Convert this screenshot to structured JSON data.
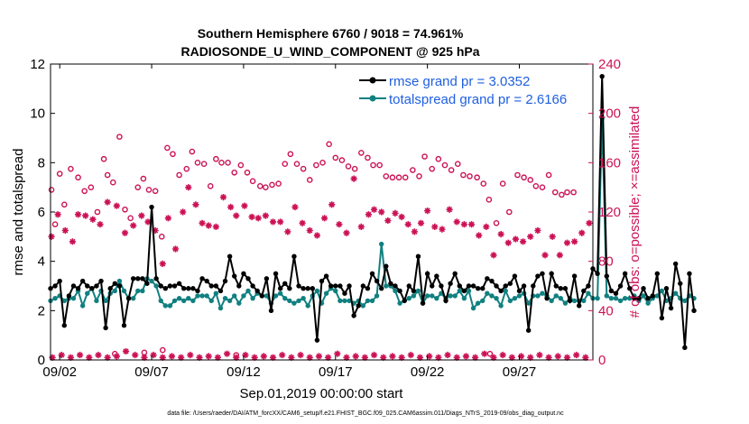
{
  "colors": {
    "rmse": "#000000",
    "spread": "#118080",
    "obs": "#cc1155",
    "axis": "#000000",
    "legend_text": "#1f5fe0"
  },
  "chart_data": {
    "type": "line",
    "title_line1": "Southern Hemisphere 6760 / 9018 = 74.961%",
    "title_line2": "RADIOSONDE_U_WIND_COMPONENT @ 925 hPa",
    "xlabel": "Sep.01,2019 00:00:00 start",
    "ylabel_left": "rmse and totalspread",
    "ylabel_right": "# of obs: o=possible; ×=assimilated",
    "xlim": [
      1.5,
      31
    ],
    "ylim_left": [
      0,
      12
    ],
    "ylim_right": [
      0,
      240
    ],
    "xticks": [
      {
        "value": 2,
        "label": "09/02"
      },
      {
        "value": 7,
        "label": "09/07"
      },
      {
        "value": 12,
        "label": "09/12"
      },
      {
        "value": 17,
        "label": "09/17"
      },
      {
        "value": 22,
        "label": "09/22"
      },
      {
        "value": 27,
        "label": "09/27"
      }
    ],
    "yticks_left": [
      0,
      2,
      4,
      6,
      8,
      10,
      12
    ],
    "yticks_right": [
      0,
      40,
      80,
      120,
      160,
      200,
      240
    ],
    "legend": [
      {
        "key": "rmse",
        "label": "rmse grand pr = 3.0352"
      },
      {
        "key": "spread",
        "label": "totalspread grand pr = 2.6166"
      }
    ],
    "footer": "data file: /Users/raeder/DAI/ATM_forcXX/CAM6_setup/f.e21.FHIST_BGC.f09_025.CAM6assim.011/Diags_NTrS_2019-09/obs_diag_output.nc",
    "x_start": 1.5,
    "x_step": 0.25,
    "rmse": [
      2.9,
      3.0,
      3.2,
      1.4,
      2.6,
      3.0,
      2.9,
      3.2,
      3.0,
      2.9,
      3.0,
      3.2,
      1.3,
      2.9,
      3.1,
      3.0,
      1.4,
      2.5,
      3.3,
      3.3,
      3.3,
      3.1,
      6.2,
      3.3,
      3.0,
      2.9,
      3.0,
      3.0,
      3.1,
      2.9,
      2.9,
      2.9,
      2.8,
      3.3,
      3.2,
      3.0,
      3.0,
      2.8,
      3.2,
      4.2,
      3.4,
      3.0,
      3.5,
      3.3,
      3.0,
      2.8,
      2.6,
      3.3,
      2.0,
      3.5,
      2.9,
      3.1,
      2.9,
      4.2,
      3.0,
      2.9,
      2.9,
      2.9,
      0.8,
      3.2,
      3.4,
      3.0,
      3.0,
      3.0,
      2.7,
      3.0,
      1.8,
      2.2,
      3.0,
      2.9,
      3.5,
      3.2,
      2.9,
      3.8,
      3.1,
      3.0,
      2.8,
      2.4,
      3.0,
      2.8,
      4.2,
      2.3,
      3.5,
      3.0,
      3.4,
      3.0,
      2.4,
      3.1,
      3.5,
      3.0,
      2.8,
      3.0,
      3.0,
      2.9,
      2.9,
      3.3,
      3.2,
      3.0,
      2.8,
      3.0,
      3.1,
      3.4,
      2.8,
      3.0,
      1.2,
      3.0,
      3.4,
      3.5,
      2.5,
      3.5,
      3.0,
      2.9,
      2.9,
      2.4,
      3.4,
      2.2,
      2.8,
      3.0,
      3.7,
      3.5,
      11.5,
      3.4,
      2.8,
      2.7,
      3.0,
      3.5,
      2.9,
      2.5,
      2.5,
      2.9,
      2.5,
      2.6,
      3.5,
      1.7,
      2.9,
      2.1,
      3.9,
      3.1,
      0.5,
      3.5,
      2.0
    ],
    "totalspread": [
      2.4,
      2.5,
      2.6,
      2.4,
      2.5,
      2.5,
      2.8,
      2.2,
      2.7,
      2.9,
      2.4,
      2.8,
      2.4,
      2.7,
      2.8,
      3.2,
      2.8,
      2.5,
      2.5,
      2.8,
      2.8,
      3.3,
      3.2,
      3.0,
      2.4,
      2.2,
      2.2,
      2.4,
      2.5,
      2.4,
      2.5,
      2.4,
      2.6,
      2.6,
      2.6,
      2.4,
      2.7,
      2.1,
      2.5,
      2.4,
      2.6,
      2.3,
      2.6,
      2.8,
      2.5,
      2.7,
      2.6,
      2.6,
      2.3,
      2.6,
      2.7,
      2.5,
      2.4,
      2.3,
      2.4,
      2.5,
      2.2,
      2.6,
      2.8,
      2.3,
      2.7,
      2.9,
      2.8,
      2.4,
      2.4,
      2.4,
      2.3,
      2.4,
      2.2,
      2.4,
      2.4,
      2.6,
      4.7,
      3.0,
      3.0,
      2.8,
      2.3,
      2.4,
      2.5,
      2.6,
      2.8,
      2.3,
      2.6,
      2.6,
      2.5,
      2.7,
      2.5,
      2.6,
      2.6,
      2.8,
      2.5,
      2.8,
      2.1,
      2.3,
      2.4,
      2.7,
      2.6,
      2.5,
      2.2,
      2.8,
      2.4,
      2.5,
      2.6,
      2.7,
      2.3,
      2.6,
      2.6,
      2.7,
      2.6,
      2.4,
      2.6,
      2.5,
      2.3,
      2.5,
      2.4,
      2.4,
      2.4,
      2.7,
      2.5,
      2.5,
      9.8,
      2.6,
      2.5,
      2.5,
      2.4,
      2.5,
      2.5,
      2.6,
      2.4,
      2.6,
      2.3,
      2.5,
      2.6,
      2.8,
      2.4,
      2.5,
      2.7,
      2.5,
      2.4,
      2.6,
      2.5
    ],
    "possible": [
      [
        1.55,
        138
      ],
      [
        1.75,
        110
      ],
      [
        2.0,
        151
      ],
      [
        2.25,
        126
      ],
      [
        2.6,
        155
      ],
      [
        3.0,
        148
      ],
      [
        3.35,
        137
      ],
      [
        3.7,
        140
      ],
      [
        4.05,
        120
      ],
      [
        4.4,
        163
      ],
      [
        4.6,
        150
      ],
      [
        4.9,
        144
      ],
      [
        5.25,
        181
      ],
      [
        5.55,
        122
      ],
      [
        5.85,
        115
      ],
      [
        6.25,
        140
      ],
      [
        6.55,
        147
      ],
      [
        6.85,
        138
      ],
      [
        7.2,
        137
      ],
      [
        7.55,
        100
      ],
      [
        7.85,
        172
      ],
      [
        8.15,
        167
      ],
      [
        8.5,
        150
      ],
      [
        8.9,
        155
      ],
      [
        9.2,
        169
      ],
      [
        9.5,
        160
      ],
      [
        9.85,
        159
      ],
      [
        10.2,
        141
      ],
      [
        10.5,
        163
      ],
      [
        10.8,
        160
      ],
      [
        11.15,
        160
      ],
      [
        11.5,
        152
      ],
      [
        11.85,
        158
      ],
      [
        12.2,
        152
      ],
      [
        12.5,
        145
      ],
      [
        12.9,
        141
      ],
      [
        13.2,
        140
      ],
      [
        13.55,
        142
      ],
      [
        13.9,
        143
      ],
      [
        14.25,
        159
      ],
      [
        14.55,
        167
      ],
      [
        14.9,
        159
      ],
      [
        15.25,
        155
      ],
      [
        15.6,
        146
      ],
      [
        15.95,
        158
      ],
      [
        16.3,
        160
      ],
      [
        16.65,
        175
      ],
      [
        17.0,
        164
      ],
      [
        17.35,
        162
      ],
      [
        17.7,
        157
      ],
      [
        18.05,
        155
      ],
      [
        18.4,
        168
      ],
      [
        18.75,
        164
      ],
      [
        19.05,
        158
      ],
      [
        19.4,
        158
      ],
      [
        19.75,
        149
      ],
      [
        20.1,
        148
      ],
      [
        20.45,
        148
      ],
      [
        20.8,
        148
      ],
      [
        21.2,
        154
      ],
      [
        21.55,
        149
      ],
      [
        21.85,
        165
      ],
      [
        22.25,
        155
      ],
      [
        22.6,
        163
      ],
      [
        22.95,
        158
      ],
      [
        23.3,
        154
      ],
      [
        23.65,
        159
      ],
      [
        23.95,
        150
      ],
      [
        24.3,
        149
      ],
      [
        24.7,
        148
      ],
      [
        25.05,
        143
      ],
      [
        25.35,
        130
      ],
      [
        25.75,
        111
      ],
      [
        26.1,
        143
      ],
      [
        26.45,
        120
      ],
      [
        26.9,
        150
      ],
      [
        27.25,
        148
      ],
      [
        27.6,
        146
      ],
      [
        27.9,
        141
      ],
      [
        28.25,
        140
      ],
      [
        28.6,
        150
      ],
      [
        28.95,
        136
      ],
      [
        29.3,
        134
      ],
      [
        29.6,
        136
      ],
      [
        29.95,
        136
      ]
    ],
    "assimilated": [
      [
        1.55,
        100
      ],
      [
        1.9,
        118
      ],
      [
        2.3,
        105
      ],
      [
        2.7,
        96
      ],
      [
        3.0,
        118
      ],
      [
        3.4,
        117
      ],
      [
        3.8,
        114
      ],
      [
        4.2,
        110
      ],
      [
        4.6,
        128
      ],
      [
        5.1,
        125
      ],
      [
        5.55,
        103
      ],
      [
        6.0,
        109
      ],
      [
        6.45,
        117
      ],
      [
        6.8,
        112
      ],
      [
        7.2,
        105
      ],
      [
        7.6,
        78
      ],
      [
        7.9,
        115
      ],
      [
        8.3,
        90
      ],
      [
        8.7,
        120
      ],
      [
        9.0,
        140
      ],
      [
        9.4,
        126
      ],
      [
        9.75,
        111
      ],
      [
        10.1,
        109
      ],
      [
        10.5,
        108
      ],
      [
        10.9,
        132
      ],
      [
        11.3,
        124
      ],
      [
        11.6,
        117
      ],
      [
        12.05,
        125
      ],
      [
        12.45,
        116
      ],
      [
        12.8,
        115
      ],
      [
        13.2,
        117
      ],
      [
        13.6,
        112
      ],
      [
        14.0,
        112
      ],
      [
        14.4,
        104
      ],
      [
        14.8,
        124
      ],
      [
        15.2,
        111
      ],
      [
        15.6,
        105
      ],
      [
        16.0,
        101
      ],
      [
        16.4,
        115
      ],
      [
        16.8,
        126
      ],
      [
        17.2,
        110
      ],
      [
        17.6,
        103
      ],
      [
        18.0,
        147
      ],
      [
        18.4,
        108
      ],
      [
        18.8,
        118
      ],
      [
        19.1,
        122
      ],
      [
        19.5,
        120
      ],
      [
        19.85,
        113
      ],
      [
        20.25,
        119
      ],
      [
        20.6,
        116
      ],
      [
        20.95,
        110
      ],
      [
        21.3,
        104
      ],
      [
        21.65,
        111
      ],
      [
        22.0,
        121
      ],
      [
        22.4,
        108
      ],
      [
        22.8,
        106
      ],
      [
        23.2,
        122
      ],
      [
        23.6,
        112
      ],
      [
        24.0,
        110
      ],
      [
        24.4,
        110
      ],
      [
        24.8,
        101
      ],
      [
        25.2,
        108
      ],
      [
        25.6,
        85
      ],
      [
        26.0,
        102
      ],
      [
        26.4,
        95
      ],
      [
        26.8,
        98
      ],
      [
        27.2,
        96
      ],
      [
        27.6,
        100
      ],
      [
        28.0,
        105
      ],
      [
        28.4,
        85
      ],
      [
        28.8,
        100
      ],
      [
        29.2,
        85
      ],
      [
        29.6,
        95
      ],
      [
        30.0,
        96
      ],
      [
        30.4,
        103
      ],
      [
        30.8,
        111
      ]
    ],
    "possible_bottom": [
      [
        5.0,
        5
      ],
      [
        6.6,
        6
      ],
      [
        7.6,
        8
      ],
      [
        11.6,
        4
      ],
      [
        25.4,
        5
      ]
    ],
    "assimilated_bottom": [
      [
        1.6,
        2
      ],
      [
        2.1,
        4
      ],
      [
        2.6,
        2
      ],
      [
        3.1,
        4
      ],
      [
        3.6,
        2
      ],
      [
        4.1,
        4
      ],
      [
        4.6,
        2
      ],
      [
        5.1,
        3
      ],
      [
        5.6,
        7
      ],
      [
        6.1,
        4
      ],
      [
        6.6,
        2
      ],
      [
        7.1,
        4
      ],
      [
        7.6,
        2
      ],
      [
        8.1,
        3
      ],
      [
        8.6,
        2
      ],
      [
        9.1,
        4
      ],
      [
        9.6,
        2
      ],
      [
        10.1,
        3
      ],
      [
        10.6,
        2
      ],
      [
        11.1,
        5
      ],
      [
        11.6,
        2
      ],
      [
        12.1,
        4
      ],
      [
        12.6,
        2
      ],
      [
        13.1,
        3
      ],
      [
        13.6,
        2
      ],
      [
        14.1,
        4
      ],
      [
        14.6,
        2
      ],
      [
        15.1,
        4
      ],
      [
        15.6,
        2
      ],
      [
        16.1,
        3
      ],
      [
        16.6,
        2
      ],
      [
        17.1,
        5
      ],
      [
        17.6,
        2
      ],
      [
        18.1,
        3
      ],
      [
        18.6,
        2
      ],
      [
        19.1,
        4
      ],
      [
        19.6,
        2
      ],
      [
        20.1,
        3
      ],
      [
        20.6,
        2
      ],
      [
        21.1,
        4
      ],
      [
        21.6,
        2
      ],
      [
        22.1,
        3
      ],
      [
        22.6,
        2
      ],
      [
        23.1,
        4
      ],
      [
        23.6,
        2
      ],
      [
        24.1,
        3
      ],
      [
        24.6,
        2
      ],
      [
        25.1,
        5
      ],
      [
        25.6,
        2
      ],
      [
        26.1,
        4
      ],
      [
        26.6,
        2
      ],
      [
        27.1,
        3
      ],
      [
        27.6,
        2
      ],
      [
        28.1,
        4
      ],
      [
        28.6,
        2
      ],
      [
        29.1,
        3
      ],
      [
        29.6,
        2
      ],
      [
        30.1,
        4
      ],
      [
        30.6,
        2
      ]
    ]
  }
}
